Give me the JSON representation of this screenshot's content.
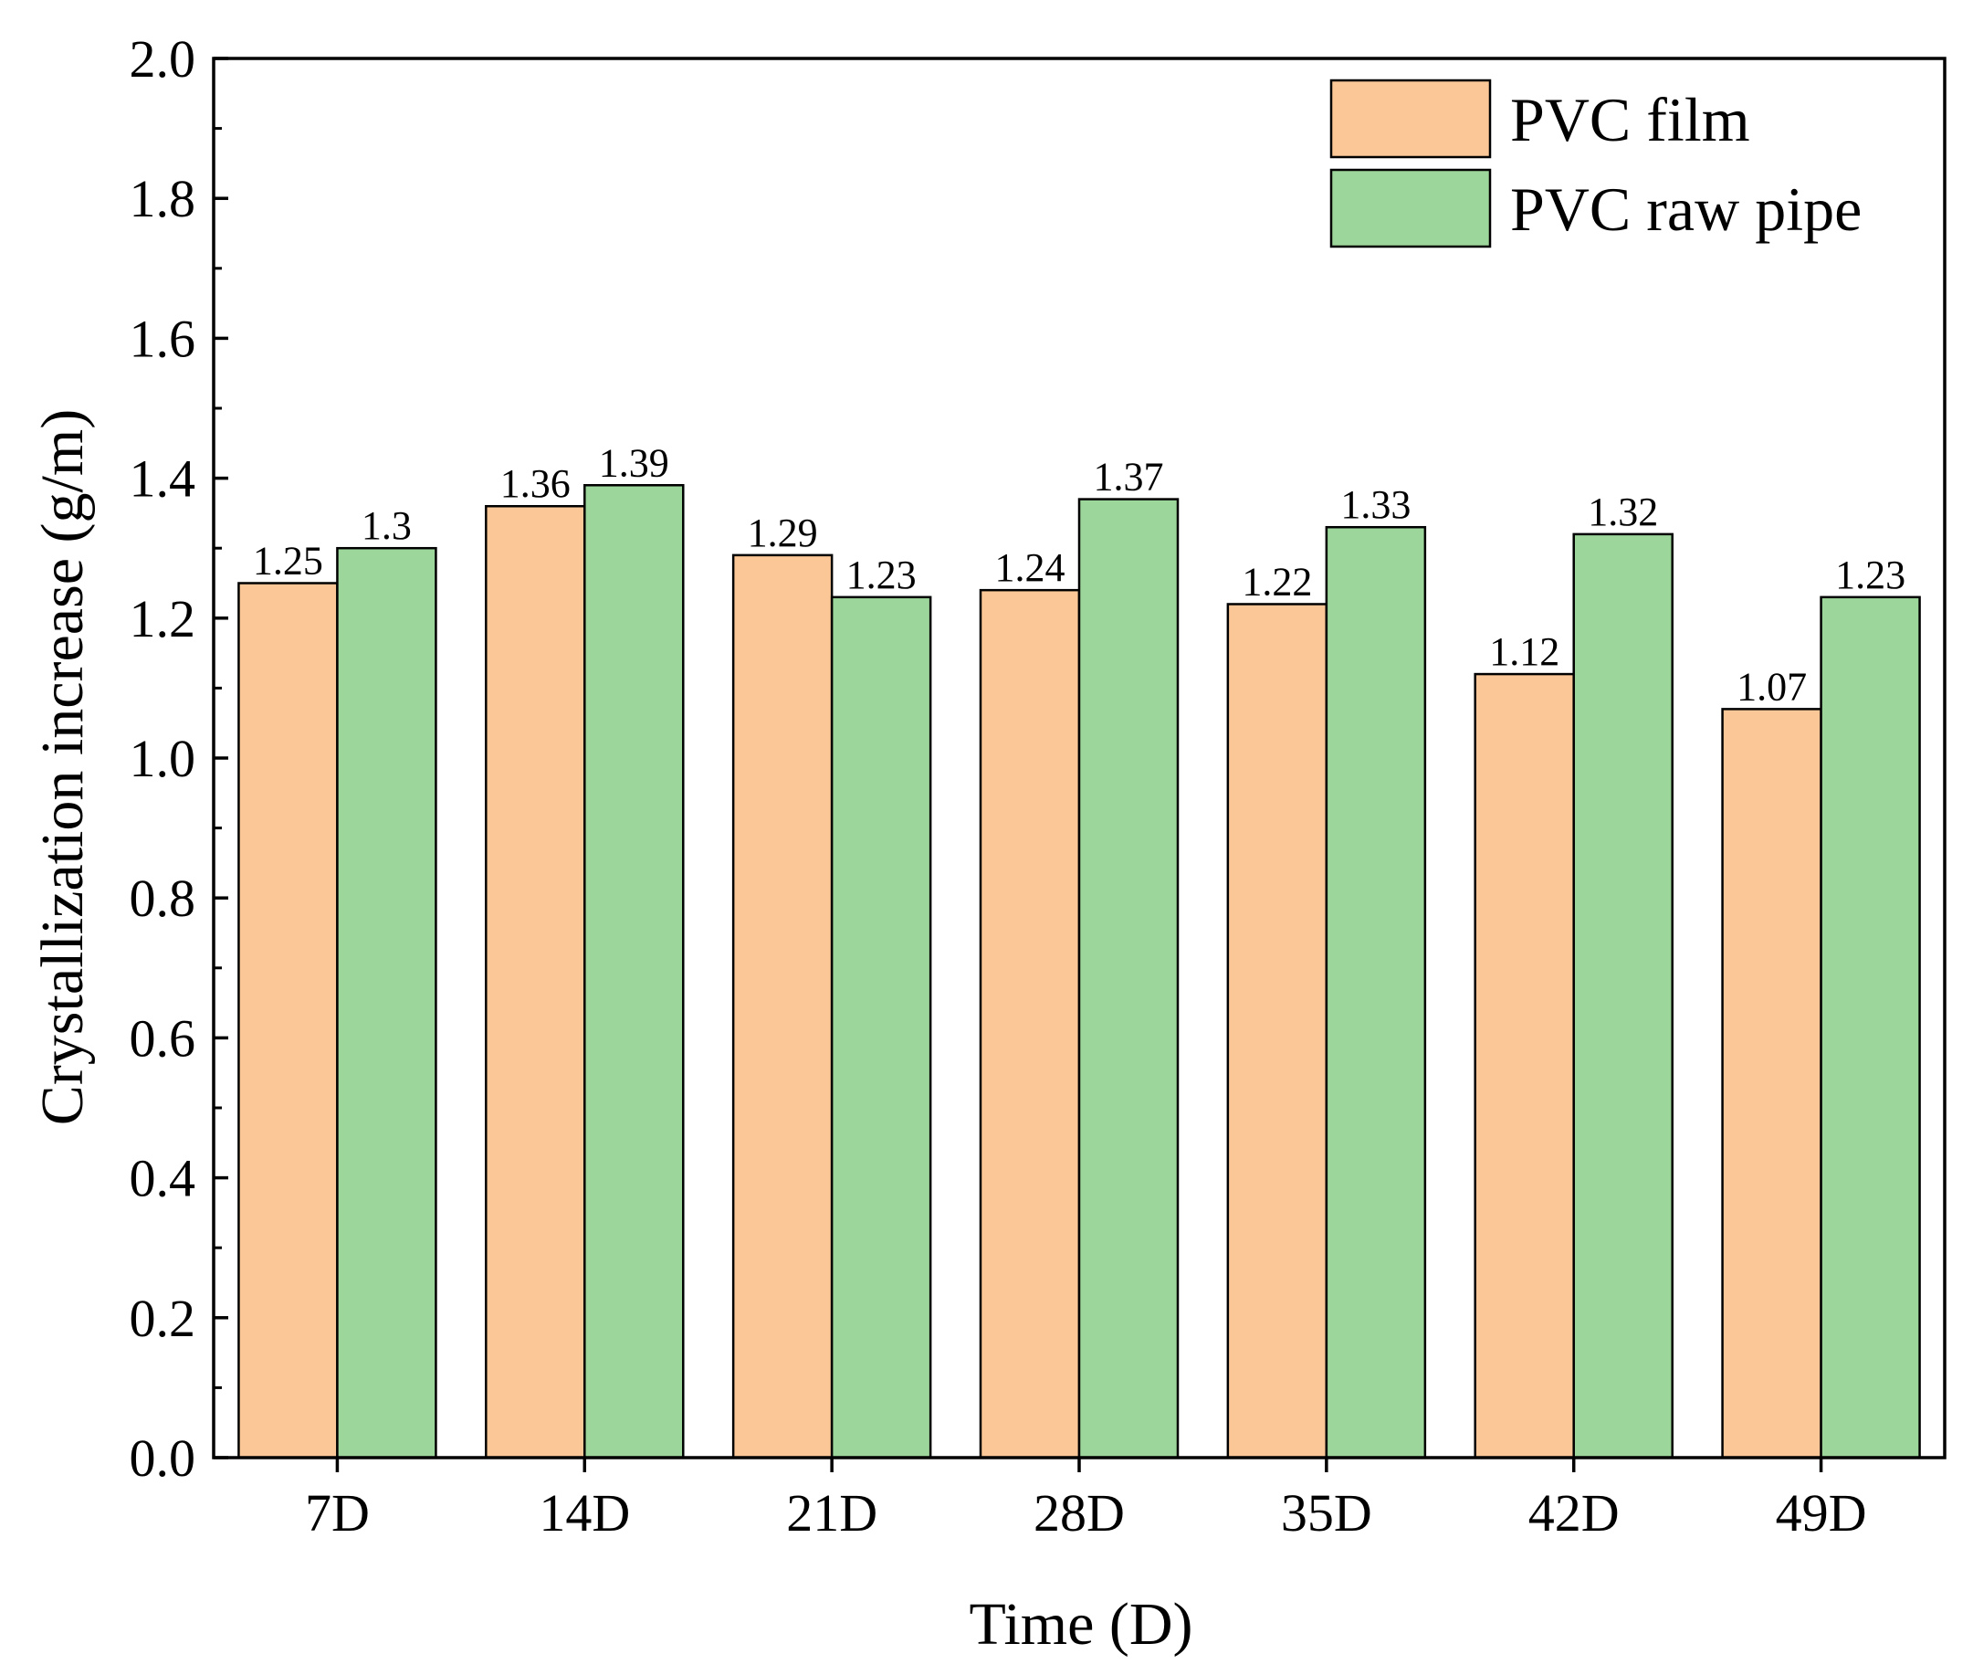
{
  "chart_data": {
    "type": "bar",
    "title": "",
    "xlabel": "Time (D)",
    "ylabel": "Crystallization increase (g/m)",
    "categories": [
      "7D",
      "14D",
      "21D",
      "28D",
      "35D",
      "42D",
      "49D"
    ],
    "series": [
      {
        "name": "PVC film",
        "color": "#fbc797",
        "values": [
          1.25,
          1.36,
          1.29,
          1.24,
          1.22,
          1.12,
          1.07
        ],
        "labels": [
          "1.25",
          "1.36",
          "1.29",
          "1.24",
          "1.22",
          "1.12",
          "1.07"
        ]
      },
      {
        "name": "PVC raw pipe",
        "color": "#9dd69b",
        "values": [
          1.3,
          1.39,
          1.23,
          1.37,
          1.33,
          1.32,
          1.23
        ],
        "labels": [
          "1.3",
          "1.39",
          "1.23",
          "1.37",
          "1.33",
          "1.32",
          "1.23"
        ]
      }
    ],
    "ylim": [
      0,
      2.0
    ],
    "yticks": [
      "0.0",
      "0.2",
      "0.4",
      "0.6",
      "0.8",
      "1.0",
      "1.2",
      "1.4",
      "1.6",
      "1.8",
      "2.0"
    ],
    "legend_position": "top-right",
    "grid": false
  }
}
